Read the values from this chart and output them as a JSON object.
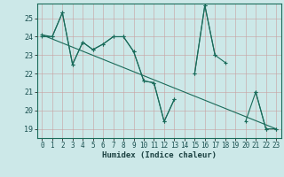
{
  "xlabel": "Humidex (Indice chaleur)",
  "bg_color": "#cce8e8",
  "line_color": "#1a6b5a",
  "xlim": [
    -0.5,
    23.5
  ],
  "ylim": [
    18.5,
    25.8
  ],
  "x_ticks": [
    0,
    1,
    2,
    3,
    4,
    5,
    6,
    7,
    8,
    9,
    10,
    11,
    12,
    13,
    14,
    15,
    16,
    17,
    18,
    19,
    20,
    21,
    22,
    23
  ],
  "y_ticks": [
    19,
    20,
    21,
    22,
    23,
    24,
    25
  ],
  "series1_y": [
    24.0,
    24.0,
    25.3,
    22.5,
    23.7,
    23.3,
    23.6,
    24.0,
    24.0,
    23.2,
    21.6,
    21.5,
    19.4,
    20.6,
    null,
    22.0,
    25.7,
    23.0,
    null,
    null,
    null,
    21.0,
    19.0,
    19.0
  ],
  "series2_y": [
    24.1,
    24.0,
    25.3,
    22.5,
    23.7,
    23.3,
    23.6,
    24.0,
    24.0,
    23.2,
    21.6,
    21.5,
    19.4,
    20.6,
    null,
    22.0,
    25.7,
    23.0,
    22.6,
    null,
    19.4,
    21.0,
    19.0,
    19.0
  ],
  "trend_x": [
    0,
    23
  ],
  "trend_y": [
    24.1,
    19.0
  ],
  "tick_fontsize": 5.5,
  "xlabel_fontsize": 6.5,
  "marker_size": 3,
  "line_width": 0.8
}
